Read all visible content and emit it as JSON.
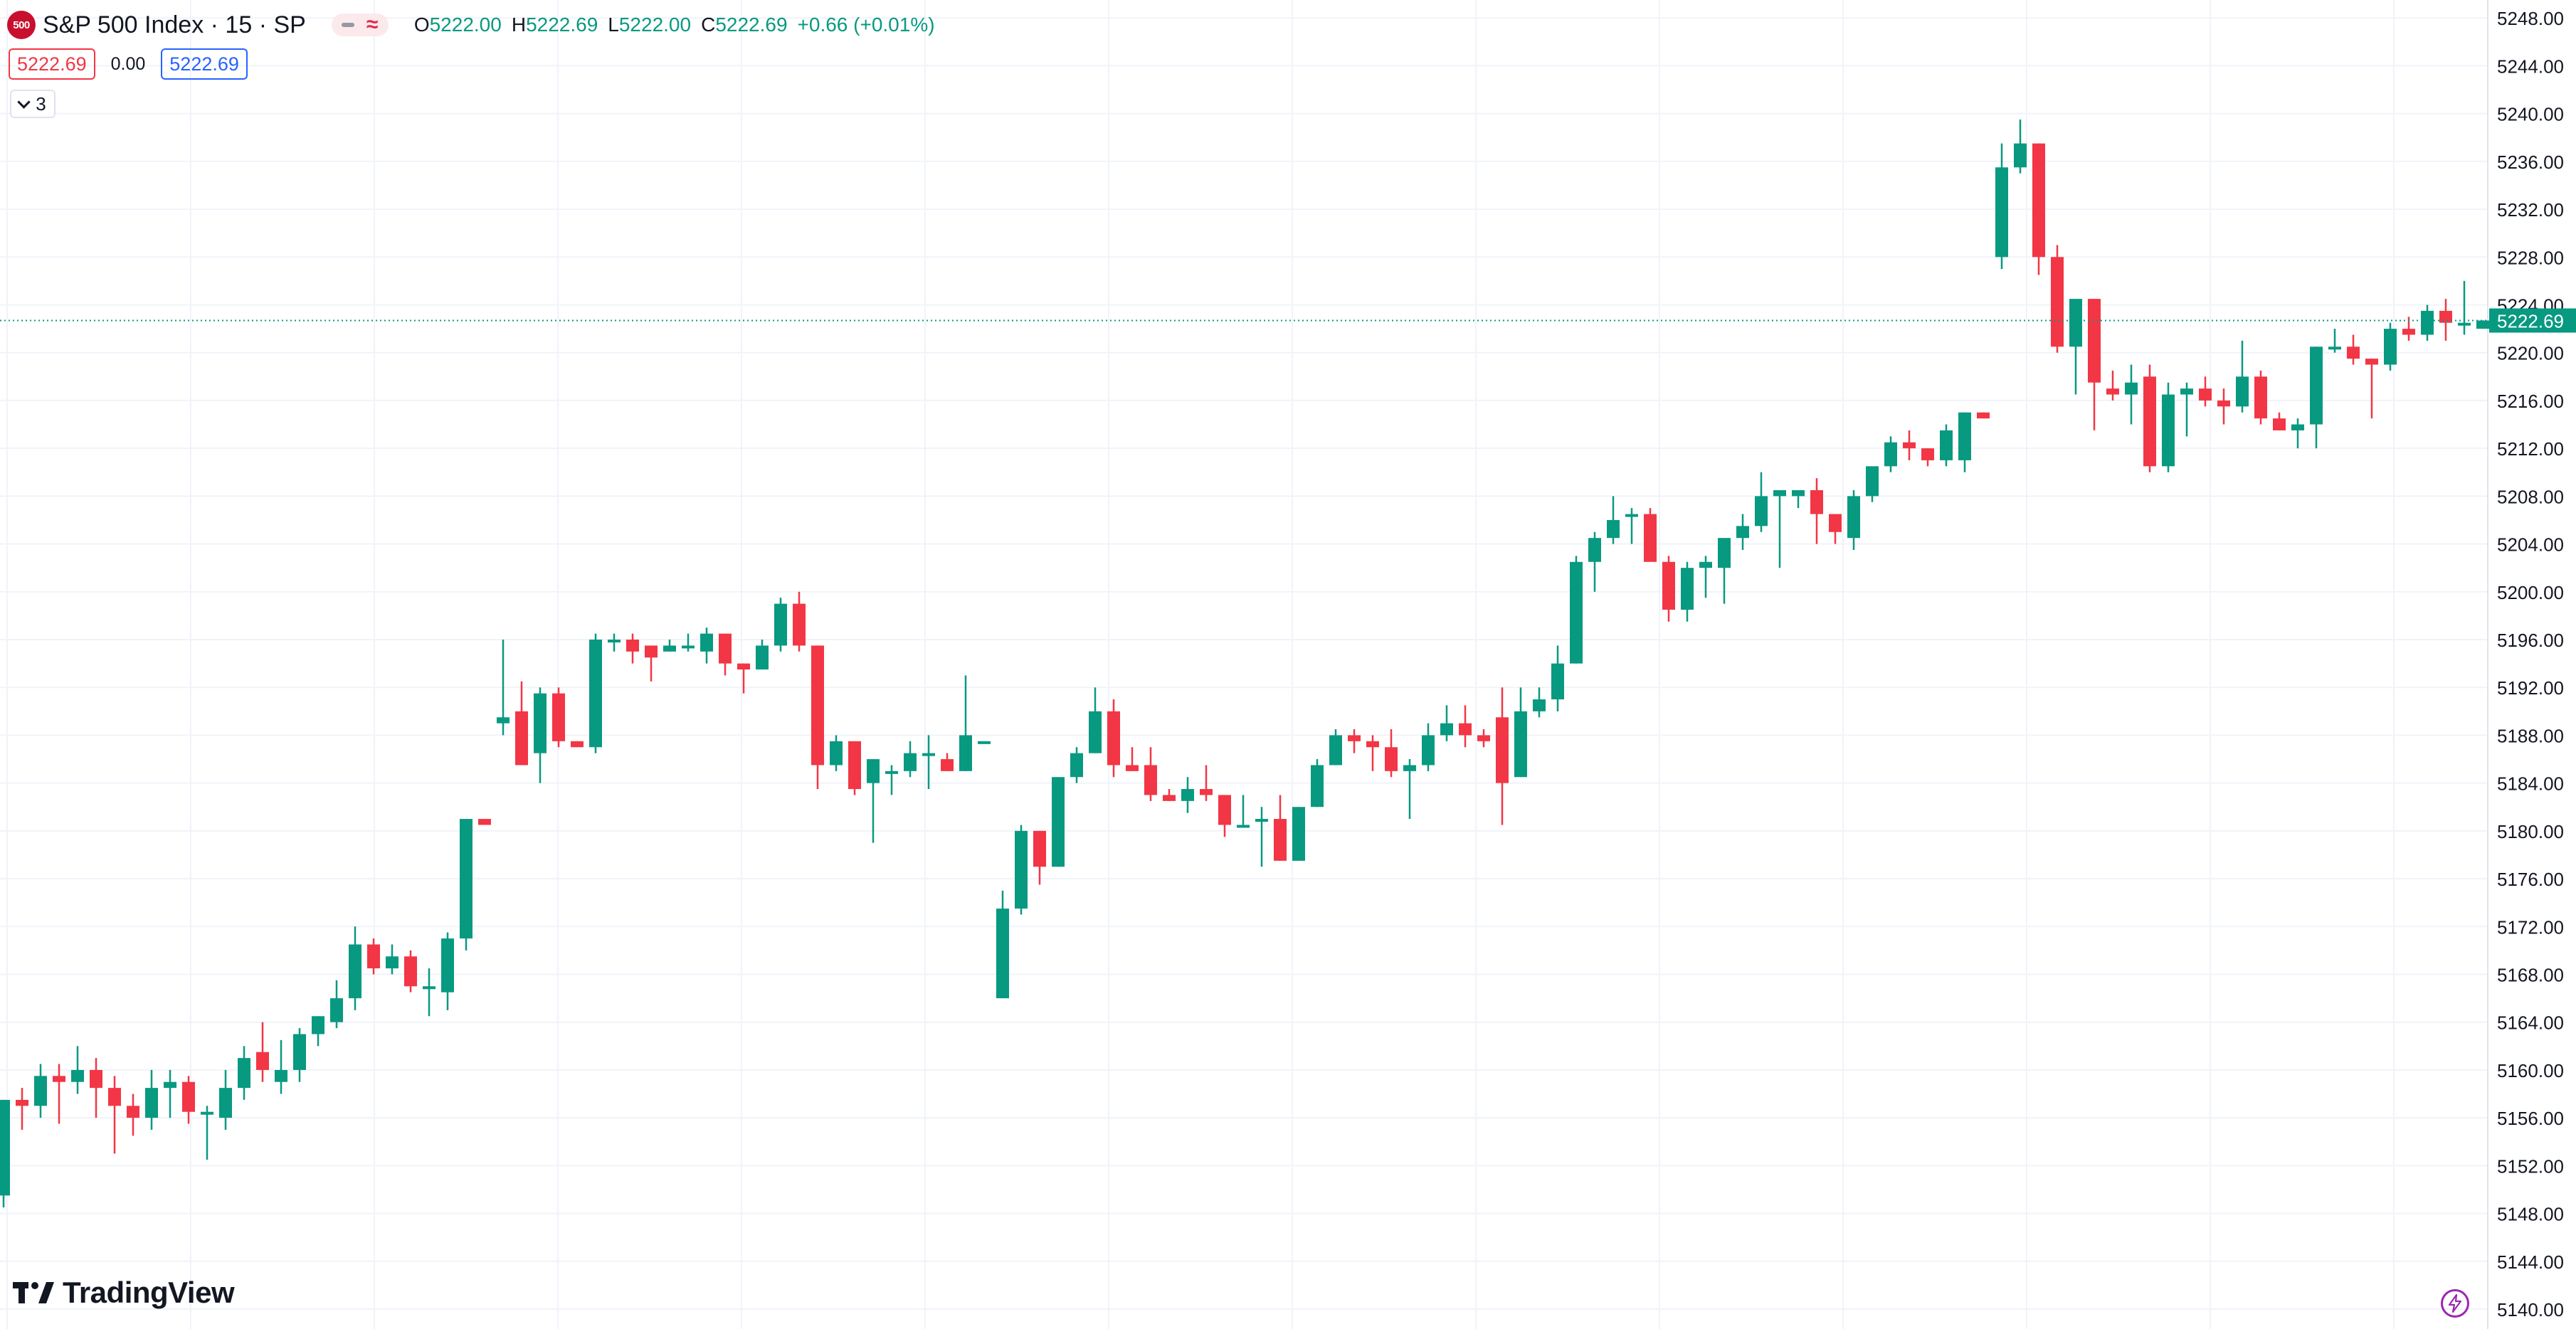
{
  "legend": {
    "symbol_logo": "500",
    "title": "S&P 500 Index · 15 · SP",
    "open_label": "O",
    "open": "5222.00",
    "high_label": "H",
    "high": "5222.69",
    "low_label": "L",
    "low": "5222.00",
    "close_label": "C",
    "close": "5222.69",
    "change": "+0.66 (+0.01%)",
    "bid": "5222.69",
    "spread": "0.00",
    "ask": "5222.69",
    "indicator_count": "3"
  },
  "brand": "TradingView",
  "colors": {
    "up": "#089981",
    "down": "#f23645",
    "grid": "#f0f3fa",
    "axis_text": "#131722",
    "last_price_line": "#089981"
  },
  "chart_data": {
    "type": "candlestick",
    "ylim": [
      5140,
      5249.5
    ],
    "yticks": [
      "5140.00",
      "5144.00",
      "5148.00",
      "5152.00",
      "5156.00",
      "5160.00",
      "5164.00",
      "5168.00",
      "5172.00",
      "5176.00",
      "5180.00",
      "5184.00",
      "5188.00",
      "5192.00",
      "5196.00",
      "5200.00",
      "5204.00",
      "5208.00",
      "5212.00",
      "5216.00",
      "5220.00",
      "5224.00",
      "5228.00",
      "5232.00",
      "5236.00",
      "5240.00",
      "5244.00",
      "5248.00"
    ],
    "last_price": 5222.69,
    "last_price_label": "5222.69",
    "candles": [
      [
        5149.5,
        5157.5,
        5148.5,
        5157.5
      ],
      [
        5157.5,
        5158.5,
        5155,
        5157
      ],
      [
        5157,
        5160.5,
        5156,
        5159.5
      ],
      [
        5159.5,
        5160.5,
        5155.5,
        5159
      ],
      [
        5159,
        5162,
        5158,
        5160
      ],
      [
        5160,
        5161,
        5156,
        5158.5
      ],
      [
        5158.5,
        5159.5,
        5153,
        5157
      ],
      [
        5157,
        5158,
        5154.5,
        5156
      ],
      [
        5156,
        5160,
        5155,
        5158.5
      ],
      [
        5158.5,
        5160,
        5156,
        5159
      ],
      [
        5159,
        5159.5,
        5155.5,
        5156.5
      ],
      [
        5156.5,
        5157,
        5152.5,
        5156.5
      ],
      [
        5156,
        5160,
        5155,
        5158.5
      ],
      [
        5158.5,
        5162,
        5157.5,
        5161
      ],
      [
        5161.5,
        5164,
        5159,
        5160
      ],
      [
        5159,
        5162.5,
        5158,
        5160
      ],
      [
        5160,
        5163.5,
        5159,
        5163
      ],
      [
        5163,
        5164.5,
        5162,
        5164.5
      ],
      [
        5164,
        5167.5,
        5163.5,
        5166
      ],
      [
        5166,
        5172,
        5165,
        5170.5
      ],
      [
        5170.5,
        5171,
        5168,
        5168.5
      ],
      [
        5168.5,
        5170.5,
        5168,
        5169.5
      ],
      [
        5169.5,
        5170,
        5166.5,
        5167
      ],
      [
        5167,
        5168.5,
        5164.5,
        5167
      ],
      [
        5166.5,
        5171.5,
        5165,
        5171
      ],
      [
        5171,
        5180.5,
        5170,
        5181
      ],
      [
        5181,
        5181,
        5180.5,
        5180.5
      ],
      [
        5189,
        5196,
        5188,
        5189.5
      ],
      [
        5190,
        5192.5,
        5185.5,
        5185.5
      ],
      [
        5186.5,
        5192,
        5184,
        5191.5
      ],
      [
        5191.5,
        5192,
        5187,
        5187.5
      ],
      [
        5187.5,
        5187.5,
        5187,
        5187
      ],
      [
        5187,
        5196.5,
        5186.5,
        5196
      ],
      [
        5196,
        5196.5,
        5195,
        5196
      ],
      [
        5196,
        5196.5,
        5194,
        5195
      ],
      [
        5195.5,
        5195.5,
        5192.5,
        5194.5
      ],
      [
        5195,
        5196,
        5195,
        5195.5
      ],
      [
        5195.5,
        5196.5,
        5195,
        5195.5
      ],
      [
        5195,
        5197,
        5194,
        5196.5
      ],
      [
        5196.5,
        5196.5,
        5193,
        5194
      ],
      [
        5194,
        5194,
        5191.5,
        5193.5
      ],
      [
        5193.5,
        5196,
        5193.5,
        5195.5
      ],
      [
        5195.5,
        5199.5,
        5195,
        5199
      ],
      [
        5199,
        5200,
        5195,
        5195.5
      ],
      [
        5195.5,
        5195.5,
        5183.5,
        5185.5
      ],
      [
        5185.5,
        5188,
        5185,
        5187.5
      ],
      [
        5187.5,
        5187.5,
        5183,
        5183.5
      ],
      [
        5184,
        5186,
        5179,
        5186
      ],
      [
        5185,
        5185.5,
        5183,
        5185
      ],
      [
        5185,
        5187.5,
        5184.5,
        5186.5
      ],
      [
        5186.5,
        5188,
        5183.5,
        5186.5
      ],
      [
        5186,
        5186.5,
        5185,
        5185
      ],
      [
        5185,
        5193,
        5185,
        5188
      ],
      [
        5187.5,
        5187.5,
        5187.5,
        5187.5
      ],
      [
        5166,
        5175,
        5166,
        5173.5
      ],
      [
        5173.5,
        5180.5,
        5173,
        5180
      ],
      [
        5180,
        5180,
        5175.5,
        5177
      ],
      [
        5177,
        5184.5,
        5177,
        5184.5
      ],
      [
        5184.5,
        5187,
        5184,
        5186.5
      ],
      [
        5186.5,
        5192,
        5186.5,
        5190
      ],
      [
        5190,
        5191,
        5184.5,
        5185.5
      ],
      [
        5185.5,
        5187,
        5185,
        5185
      ],
      [
        5185.5,
        5187,
        5182.5,
        5183
      ],
      [
        5183,
        5183.5,
        5182.5,
        5182.5
      ],
      [
        5182.5,
        5184.5,
        5181.5,
        5183.5
      ],
      [
        5183.5,
        5185.5,
        5182.5,
        5183
      ],
      [
        5183,
        5183,
        5179.5,
        5180.5
      ],
      [
        5180.5,
        5183,
        5180.5,
        5180.5
      ],
      [
        5181,
        5182,
        5177,
        5181
      ],
      [
        5181,
        5183,
        5177.5,
        5177.5
      ],
      [
        5177.5,
        5182,
        5177.5,
        5182
      ],
      [
        5182,
        5186,
        5182,
        5185.5
      ],
      [
        5185.5,
        5188.5,
        5185.5,
        5188
      ],
      [
        5188,
        5188.5,
        5186.5,
        5187.5
      ],
      [
        5187.5,
        5188,
        5185,
        5187
      ],
      [
        5187,
        5188.5,
        5184.5,
        5185
      ],
      [
        5185,
        5186,
        5181,
        5185.5
      ],
      [
        5185.5,
        5189,
        5185,
        5188
      ],
      [
        5188,
        5190.5,
        5187.5,
        5189
      ],
      [
        5189,
        5190.5,
        5187,
        5188
      ],
      [
        5188,
        5188.5,
        5187,
        5187.5
      ],
      [
        5189.5,
        5192,
        5180.5,
        5184
      ],
      [
        5184.5,
        5192,
        5184.5,
        5190
      ],
      [
        5190,
        5192,
        5189.5,
        5191
      ],
      [
        5191,
        5195.5,
        5190,
        5194
      ],
      [
        5194,
        5203,
        5194,
        5202.5
      ],
      [
        5202.5,
        5205,
        5200,
        5204.5
      ],
      [
        5204.5,
        5208,
        5204,
        5206
      ],
      [
        5206.5,
        5207,
        5204,
        5206.5
      ],
      [
        5206.5,
        5207,
        5203,
        5202.5
      ],
      [
        5202.5,
        5203,
        5197.5,
        5198.5
      ],
      [
        5198.5,
        5202.5,
        5197.5,
        5202
      ],
      [
        5202,
        5203,
        5199.5,
        5202.5
      ],
      [
        5202,
        5204,
        5199,
        5204.5
      ],
      [
        5204.5,
        5206.5,
        5203.5,
        5205.5
      ],
      [
        5205.5,
        5210,
        5205,
        5208
      ],
      [
        5208,
        5208.5,
        5202,
        5208.5
      ],
      [
        5208,
        5208,
        5207,
        5208.5
      ],
      [
        5208.5,
        5209.5,
        5204,
        5206.5
      ],
      [
        5206.5,
        5206.5,
        5204,
        5205
      ],
      [
        5204.5,
        5208.5,
        5203.5,
        5208
      ],
      [
        5208,
        5210,
        5207.5,
        5210.5
      ],
      [
        5210.5,
        5213,
        5210,
        5212.5
      ],
      [
        5212.5,
        5213.5,
        5211,
        5212
      ],
      [
        5212,
        5212,
        5210.5,
        5211
      ],
      [
        5211,
        5214,
        5210.5,
        5213.5
      ],
      [
        5211,
        5215,
        5210,
        5215
      ],
      [
        5215,
        5215,
        5214.5,
        5214.5
      ],
      [
        5228,
        5237.5,
        5227,
        5235.5
      ],
      [
        5235.5,
        5239.5,
        5235,
        5237.5
      ],
      [
        5237.5,
        5237.5,
        5226.5,
        5228
      ],
      [
        5228,
        5229,
        5220,
        5220.5
      ],
      [
        5220.5,
        5224.5,
        5216.5,
        5224.5
      ],
      [
        5224.5,
        5224.5,
        5213.5,
        5217.5
      ],
      [
        5217,
        5218.5,
        5216,
        5216.5
      ],
      [
        5216.5,
        5219,
        5214,
        5217.5
      ],
      [
        5218,
        5219,
        5210,
        5210.5
      ],
      [
        5210.5,
        5217.5,
        5210,
        5216.5
      ],
      [
        5216.5,
        5217.5,
        5213,
        5217
      ],
      [
        5217,
        5218,
        5215.5,
        5216
      ],
      [
        5216,
        5217,
        5214,
        5215.5
      ],
      [
        5215.5,
        5221,
        5215,
        5218
      ],
      [
        5218,
        5218.5,
        5214,
        5214.5
      ],
      [
        5214.5,
        5215,
        5213.5,
        5213.5
      ],
      [
        5213.5,
        5214.5,
        5212,
        5214
      ],
      [
        5214,
        5220.5,
        5212,
        5220.5
      ],
      [
        5220.5,
        5222,
        5220,
        5220.5
      ],
      [
        5220.5,
        5221.5,
        5219,
        5219.5
      ],
      [
        5219.5,
        5219.5,
        5214.5,
        5219
      ],
      [
        5219,
        5222.5,
        5218.5,
        5222
      ],
      [
        5222,
        5223,
        5221,
        5221.5
      ],
      [
        5221.5,
        5224,
        5221,
        5223.5
      ],
      [
        5223.5,
        5224.5,
        5221,
        5222.5
      ],
      [
        5222.5,
        5226,
        5221.5,
        5222.5
      ],
      [
        5222,
        5222.7,
        5222,
        5222.69
      ]
    ]
  }
}
